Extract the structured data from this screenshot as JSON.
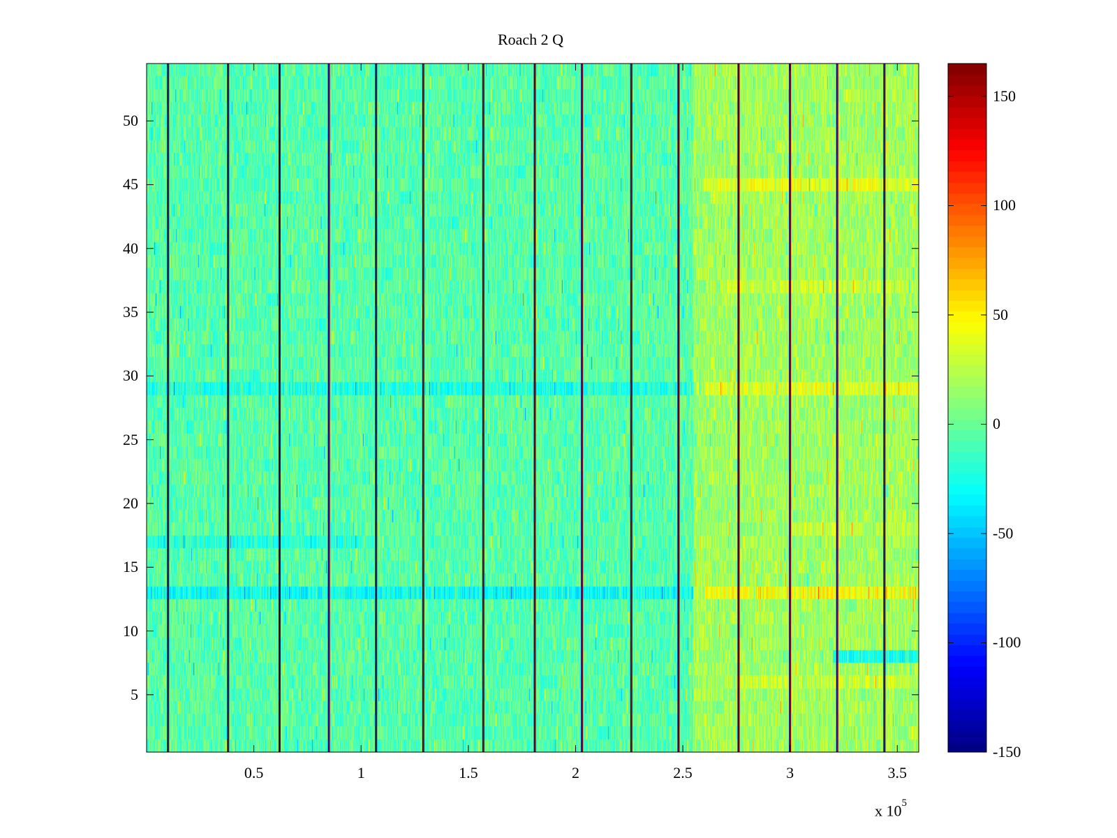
{
  "chart_data": {
    "type": "heatmap",
    "title": "Roach 2 Q",
    "xlabel": "",
    "ylabel": "",
    "x_multiplier": {
      "base": "x 10",
      "exponent": "5"
    },
    "xlim": [
      0,
      360000
    ],
    "ylim": [
      0.5,
      54.5
    ],
    "rows": 54,
    "x_ticks": [
      {
        "value": 50000,
        "label": "0.5"
      },
      {
        "value": 100000,
        "label": "1"
      },
      {
        "value": 150000,
        "label": "1.5"
      },
      {
        "value": 200000,
        "label": "2"
      },
      {
        "value": 250000,
        "label": "2.5"
      },
      {
        "value": 300000,
        "label": "3"
      },
      {
        "value": 350000,
        "label": "3.5"
      }
    ],
    "y_ticks": [
      {
        "value": 5,
        "label": "5"
      },
      {
        "value": 10,
        "label": "10"
      },
      {
        "value": 15,
        "label": "15"
      },
      {
        "value": 20,
        "label": "20"
      },
      {
        "value": 25,
        "label": "25"
      },
      {
        "value": 30,
        "label": "30"
      },
      {
        "value": 35,
        "label": "35"
      },
      {
        "value": 40,
        "label": "40"
      },
      {
        "value": 45,
        "label": "45"
      },
      {
        "value": 50,
        "label": "50"
      }
    ],
    "colorbar": {
      "colormap": "jet",
      "clim": [
        -150,
        165
      ],
      "ticks": [
        {
          "value": -150,
          "label": "-150"
        },
        {
          "value": -100,
          "label": "-100"
        },
        {
          "value": -50,
          "label": "-50"
        },
        {
          "value": 0,
          "label": "0"
        },
        {
          "value": 50,
          "label": "50"
        },
        {
          "value": 100,
          "label": "100"
        },
        {
          "value": 150,
          "label": "150"
        }
      ]
    },
    "background_level": -5,
    "noise_amplitude": 20,
    "bright_region": {
      "x_start": 255000,
      "x_end": 360000,
      "level": 18
    },
    "bright_rows": [
      {
        "row": 13,
        "x_start": 260000,
        "level": 45
      },
      {
        "row": 29,
        "x_start": 260000,
        "level": 38
      },
      {
        "row": 45,
        "x_start": 260000,
        "level": 40
      },
      {
        "row": 37,
        "x_start": 270000,
        "level": 30
      },
      {
        "row": 18,
        "x_start": 300000,
        "level": 28
      },
      {
        "row": 6,
        "x_start": 275000,
        "level": 28
      }
    ],
    "dim_rows": [
      {
        "row": 13,
        "x_start": 0,
        "x_end": 255000,
        "level": -28
      },
      {
        "row": 29,
        "x_start": 0,
        "x_end": 255000,
        "level": -22
      },
      {
        "row": 17,
        "x_start": 0,
        "x_end": 100000,
        "level": -20
      },
      {
        "row": 8,
        "x_start": 320000,
        "x_end": 360000,
        "level": -25
      }
    ],
    "vertical_stripes_x": [
      10000,
      38000,
      62000,
      85000,
      107000,
      129000,
      157000,
      181000,
      203000,
      226000,
      248000,
      276000,
      300000,
      322000,
      344000
    ],
    "stripe_extremes": [
      -150,
      165
    ]
  }
}
